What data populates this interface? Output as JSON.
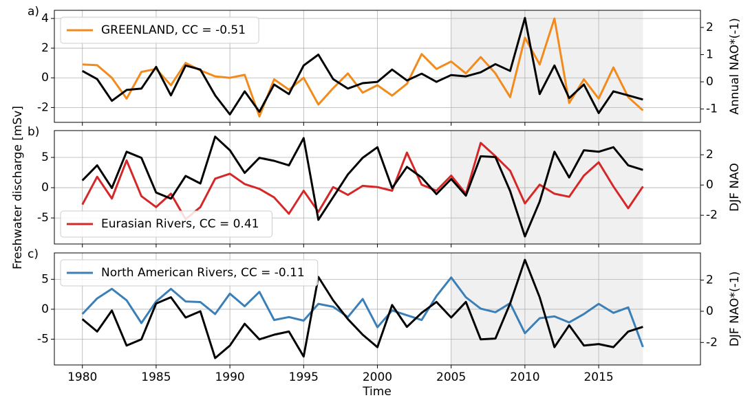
{
  "xlabel": "Time",
  "ylabel": "Freshwater discharge [mSv]",
  "x": [
    1980,
    1981,
    1982,
    1983,
    1984,
    1985,
    1986,
    1987,
    1988,
    1989,
    1990,
    1991,
    1992,
    1993,
    1994,
    1995,
    1996,
    1997,
    1998,
    1999,
    2000,
    2001,
    2002,
    2003,
    2004,
    2005,
    2006,
    2007,
    2008,
    2009,
    2010,
    2011,
    2012,
    2013,
    2014,
    2015,
    2016,
    2017,
    2018
  ],
  "xlim": [
    1978.1,
    2021.9
  ],
  "xticks": [
    1980,
    1985,
    1990,
    1995,
    2000,
    2005,
    2010,
    2015
  ],
  "chart_data": [
    {
      "type": "line",
      "panel_label": "a)",
      "y2label": "Annual NAO*(-1)",
      "grid": true,
      "legend": "upper left",
      "highlight": [
        2005,
        2018
      ],
      "ylim": [
        -3.0,
        4.55
      ],
      "yticks": [
        -2,
        0,
        2,
        4
      ],
      "y2lim": [
        -1.49,
        2.63
      ],
      "y2ticks": [
        -1,
        0,
        1,
        2
      ],
      "series": [
        {
          "name": "GREENLAND, CC = -0.51",
          "color": "#f28a1c",
          "values": [
            0.9,
            0.85,
            0.0,
            -1.4,
            0.4,
            0.6,
            -0.5,
            1.0,
            0.5,
            0.1,
            0.0,
            0.2,
            -2.6,
            -0.1,
            -0.8,
            0.0,
            -1.8,
            -0.7,
            0.3,
            -1.0,
            -0.5,
            -1.2,
            -0.4,
            1.6,
            0.6,
            1.1,
            0.3,
            1.4,
            0.3,
            -1.3,
            2.7,
            0.9,
            4.0,
            -1.7,
            -0.1,
            -1.4,
            0.7,
            -1.3,
            -2.2
          ]
        },
        {
          "color": "#000000",
          "axis": "y2",
          "values": [
            0.4,
            0.1,
            -0.7,
            -0.3,
            -0.25,
            0.55,
            -0.5,
            0.6,
            0.45,
            -0.5,
            -1.2,
            -0.35,
            -1.1,
            -0.1,
            -0.45,
            0.6,
            1.0,
            0.1,
            -0.25,
            -0.05,
            0.0,
            0.45,
            0.05,
            0.3,
            0.0,
            0.25,
            0.2,
            0.35,
            0.65,
            0.4,
            2.35,
            -0.45,
            0.6,
            -0.6,
            -0.1,
            -1.15,
            -0.35,
            -0.5,
            -0.65
          ]
        }
      ]
    },
    {
      "type": "line",
      "panel_label": "b)",
      "y2label": "DJF NAO",
      "grid": true,
      "legend": "lower left",
      "highlight": [
        2005,
        2018
      ],
      "ylim": [
        -9.3,
        9.43
      ],
      "yticks": [
        -5,
        0,
        5
      ],
      "y2lim": [
        -3.9,
        3.6
      ],
      "y2ticks": [
        -2,
        0,
        2
      ],
      "series": [
        {
          "name": "Eurasian Rivers, CC = 0.41",
          "color": "#d62728",
          "values": [
            -2.8,
            1.8,
            -1.8,
            4.5,
            -1.4,
            -3.2,
            -1.0,
            -5.2,
            -3.2,
            1.5,
            2.3,
            0.6,
            -0.2,
            -1.6,
            -4.3,
            -0.5,
            -4.0,
            0.1,
            -1.2,
            0.3,
            0.1,
            -0.5,
            5.8,
            0.5,
            -0.5,
            2.0,
            -1.0,
            7.4,
            5.2,
            2.8,
            -2.6,
            0.5,
            -1.0,
            -1.5,
            2.0,
            4.2,
            0.2,
            -3.4,
            0.2
          ]
        },
        {
          "color": "#000000",
          "axis": "y2",
          "values": [
            0.3,
            1.3,
            -0.2,
            2.2,
            1.8,
            -0.5,
            -0.9,
            0.6,
            0.1,
            3.2,
            2.3,
            0.8,
            1.8,
            1.6,
            1.3,
            3.1,
            -2.3,
            -0.8,
            0.7,
            1.8,
            2.5,
            -0.2,
            1.2,
            0.5,
            -0.6,
            0.4,
            -0.7,
            1.9,
            1.85,
            -0.4,
            -3.4,
            -1.1,
            2.2,
            0.5,
            2.3,
            2.2,
            2.5,
            1.3,
            1.0
          ]
        }
      ]
    },
    {
      "type": "line",
      "panel_label": "c)",
      "y2label": "DJF NAO*(-1)",
      "grid": true,
      "legend": "upper left",
      "highlight": [
        2005,
        2018
      ],
      "ylim": [
        -9.3,
        9.4
      ],
      "yticks": [
        -5,
        0,
        5
      ],
      "y2lim": [
        -3.44,
        3.74
      ],
      "y2ticks": [
        -2,
        0,
        2
      ],
      "series": [
        {
          "name": "North American Rivers, CC = -0.11",
          "color": "#3a7fb8",
          "values": [
            -0.8,
            1.8,
            3.4,
            1.5,
            -2.3,
            1.3,
            3.4,
            1.3,
            1.2,
            -0.8,
            2.6,
            0.5,
            2.9,
            -1.8,
            -1.3,
            -1.9,
            0.9,
            0.4,
            -1.3,
            1.7,
            -3.0,
            -0.2,
            -1.0,
            -1.8,
            2.2,
            5.3,
            2.0,
            0.1,
            -0.5,
            1.0,
            -4.0,
            -1.5,
            -1.2,
            -2.2,
            -0.8,
            0.9,
            -0.6,
            0.3,
            -6.3
          ]
        },
        {
          "color": "#000000",
          "axis": "y2",
          "values": [
            -0.5,
            -1.3,
            0.05,
            -2.2,
            -1.8,
            0.5,
            0.9,
            -0.4,
            0.0,
            -3.0,
            -2.2,
            -0.8,
            -1.8,
            -1.5,
            -1.3,
            -2.9,
            2.2,
            0.7,
            -0.5,
            -1.5,
            -2.3,
            0.4,
            -1.0,
            -0.1,
            0.6,
            -0.4,
            0.6,
            -1.8,
            -1.75,
            0.5,
            3.3,
            0.9,
            -2.3,
            -0.9,
            -2.2,
            -2.1,
            -2.3,
            -1.3,
            -1.0
          ]
        }
      ]
    }
  ]
}
